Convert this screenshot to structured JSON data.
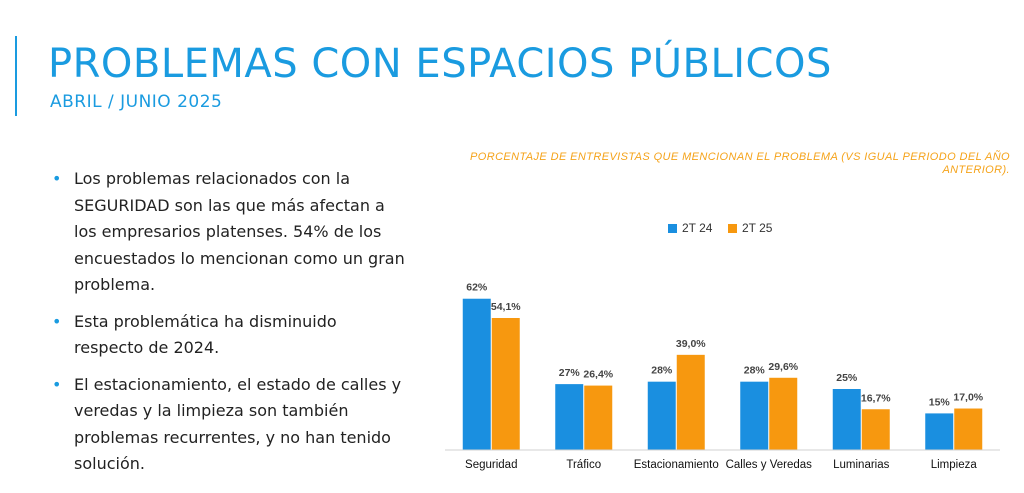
{
  "header": {
    "title": "PROBLEMAS CON ESPACIOS PÚBLICOS",
    "subtitle": "ABRIL / JUNIO 2025"
  },
  "bullets": [
    "Los problemas relacionados con la SEGURIDAD son las que más afectan a los empresarios platenses. 54% de los encuestados lo mencionan como un gran problema.",
    "Esta problemática ha disminuido respecto de 2024.",
    "El estacionamiento, el estado de calles y veredas y la limpieza son también problemas recurrentes, y no han tenido solución."
  ],
  "chart_caption": "PORCENTAJE DE ENTREVISTAS QUE MENCIONAN EL PROBLEMA (VS IGUAL PERIODO DEL AÑO ANTERIOR).",
  "colors": {
    "accent": "#1a9be0",
    "series_2t24": "#1a8fe0",
    "series_2t25": "#f7980f",
    "caption": "#f5a31a"
  },
  "chart_data": {
    "type": "bar",
    "title": "PORCENTAJE DE ENTREVISTAS QUE MENCIONAN EL PROBLEMA (VS IGUAL PERIODO DEL AÑO ANTERIOR).",
    "categories": [
      "Seguridad",
      "Tráfico",
      "Estacionamiento",
      "Calles y Veredas",
      "Luminarias",
      "Limpieza"
    ],
    "series": [
      {
        "name": "2T 24",
        "values": [
          62,
          27,
          28,
          28,
          25,
          15
        ],
        "labels": [
          "62%",
          "27%",
          "28%",
          "28%",
          "25%",
          "15%"
        ]
      },
      {
        "name": "2T 25",
        "values": [
          54.1,
          26.4,
          39.0,
          29.6,
          16.7,
          17.0
        ],
        "labels": [
          "54,1%",
          "26,4%",
          "39,0%",
          "29,6%",
          "16,7%",
          "17,0%"
        ]
      }
    ],
    "xlabel": "",
    "ylabel": "",
    "ylim": [
      0,
      70
    ],
    "grid": false,
    "legend": "top-center"
  }
}
